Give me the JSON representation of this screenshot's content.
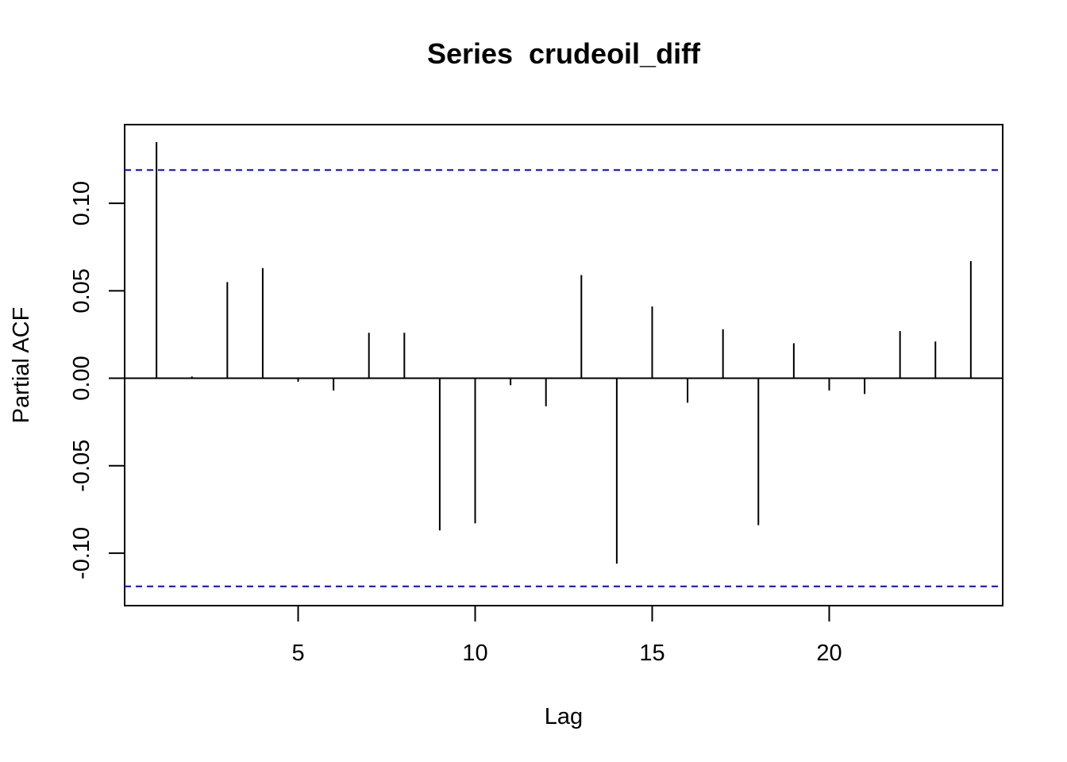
{
  "chart_data": {
    "type": "bar",
    "title": "Series  crudeoil_diff",
    "xlabel": "Lag",
    "ylabel": "Partial ACF",
    "x": [
      1,
      2,
      3,
      4,
      5,
      6,
      7,
      8,
      9,
      10,
      11,
      12,
      13,
      14,
      15,
      16,
      17,
      18,
      19,
      20,
      21,
      22,
      23,
      24
    ],
    "values": [
      0.135,
      0.001,
      0.055,
      0.063,
      -0.002,
      -0.007,
      0.026,
      0.026,
      -0.087,
      -0.083,
      -0.004,
      -0.016,
      0.059,
      -0.106,
      0.041,
      -0.014,
      0.028,
      -0.084,
      0.02,
      -0.007,
      -0.009,
      0.027,
      0.021,
      0.067
    ],
    "x_ticks": [
      5,
      10,
      15,
      20
    ],
    "x_tick_labels": [
      "5",
      "10",
      "15",
      "20"
    ],
    "y_ticks": [
      -0.1,
      -0.05,
      0.0,
      0.05,
      0.1
    ],
    "y_tick_labels": [
      "-0.10",
      "-0.05",
      "0.00",
      "0.05",
      "0.10"
    ],
    "xlim": [
      0.1,
      24.9
    ],
    "ylim": [
      -0.13,
      0.145
    ],
    "confidence_bound": 0.119,
    "bound_color": "#0000ff",
    "bar_color": "#000000",
    "grid": false
  }
}
